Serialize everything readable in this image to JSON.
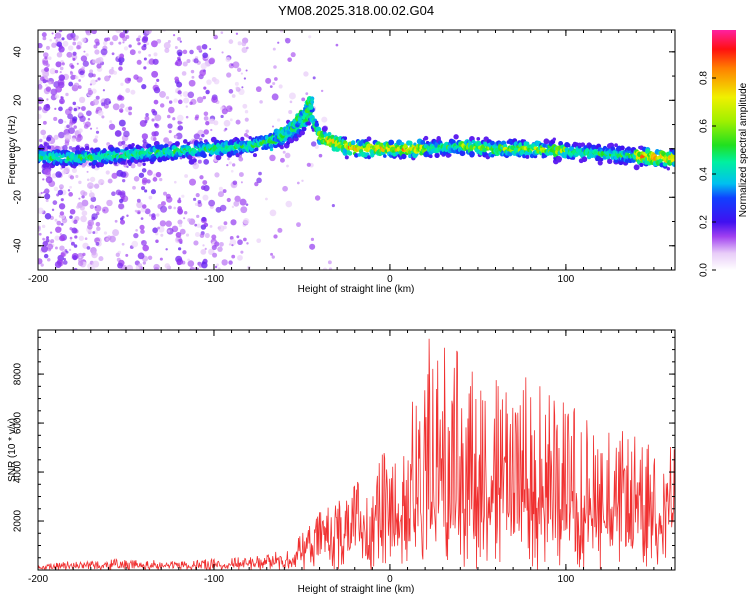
{
  "figure": {
    "title": "YM08.2025.318.00.02.G04"
  },
  "chart_data": [
    {
      "type": "heatmap",
      "xlabel": "Height of straight line (km)",
      "ylabel": "Frequency (Hz)",
      "xlim": [
        -200,
        162
      ],
      "ylim": [
        -50,
        49
      ],
      "xticks": [
        -200,
        -100,
        0,
        100
      ],
      "yticks": [
        -40,
        -20,
        0,
        20,
        40
      ],
      "colorbar": {
        "label": "Normalized spectral amplitude",
        "range": [
          0,
          1
        ],
        "ticks": [
          "0.0",
          "0.2",
          "0.4",
          "0.6",
          "0.8"
        ]
      },
      "ridge": {
        "x": [
          -200,
          -180,
          -160,
          -140,
          -120,
          -100,
          -80,
          -60,
          -50,
          -45,
          -40,
          -30,
          -20,
          0,
          20,
          40,
          60,
          80,
          100,
          120,
          140,
          162
        ],
        "y": [
          -3,
          -4,
          -3,
          -2,
          -1,
          0,
          1,
          5,
          10,
          15,
          5,
          2,
          0,
          0,
          0,
          1,
          0,
          0,
          -1,
          -2,
          -3,
          -4
        ]
      },
      "branch": {
        "x": [
          -68,
          -55,
          -44
        ],
        "y": [
          2,
          10,
          20
        ]
      }
    },
    {
      "type": "line",
      "xlabel": "Height of straight line (km)",
      "ylabel": "SNR (10 * v/v)",
      "xlim": [
        -200,
        162
      ],
      "ylim": [
        0,
        9800
      ],
      "xticks": [
        -200,
        -100,
        0,
        100
      ],
      "yticks": [
        2000,
        4000,
        6000,
        8000
      ],
      "series": [
        {
          "color": "#f03030",
          "envelope": {
            "x": [
              -200,
              -180,
              -160,
              -140,
              -120,
              -100,
              -80,
              -60,
              -50,
              -40,
              -30,
              -20,
              -10,
              0,
              10,
              20,
              40,
              60,
              80,
              100,
              120,
              140,
              162
            ],
            "y": [
              200,
              400,
              450,
              400,
              400,
              450,
              550,
              800,
              1500,
              2400,
              2900,
              3700,
              4500,
              5000,
              6000,
              9800,
              9000,
              8000,
              8000,
              7000,
              6000,
              5500,
              5000
            ]
          }
        }
      ]
    }
  ]
}
